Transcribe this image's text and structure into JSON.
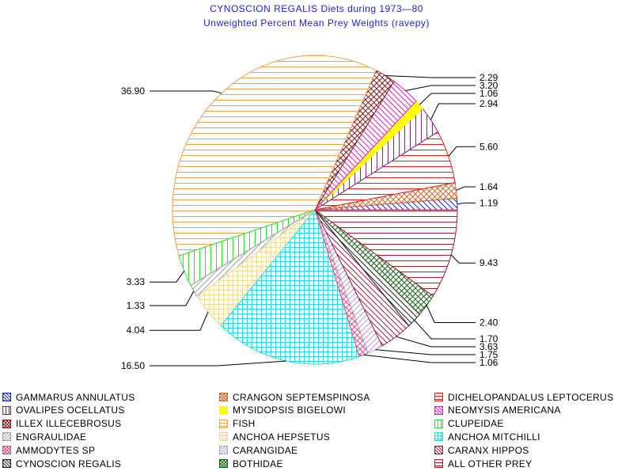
{
  "chart_data": {
    "type": "pie",
    "title": "CYNOSCION REGALIS Diets during 1973—80",
    "subtitle": "Unweighted Percent Mean Prey Weights (ravepy)",
    "slices": [
      {
        "name": "GAMMARUS ANNULATUS",
        "value": 1.19,
        "label": "1.19",
        "color": "#1f1fd1",
        "pattern": "diag-back"
      },
      {
        "name": "CRANGON SEPTEMSPINOSA",
        "value": 1.64,
        "label": "1.64",
        "color": "#cc6a2c",
        "pattern": "cross-diag"
      },
      {
        "name": "DICHELOPANDALUS LEPTOCERUS",
        "value": 5.6,
        "label": "5.60",
        "color": "#e02020",
        "pattern": "horiz"
      },
      {
        "name": "OVALIPES OCELLATUS",
        "value": 2.94,
        "label": "2.94",
        "color": "#7a2b86",
        "pattern": "vert"
      },
      {
        "name": "MYSIDOPSIS BIGELOWI",
        "value": 1.06,
        "label": "1.06",
        "color": "#ffff00",
        "pattern": "solid"
      },
      {
        "name": "NEOMYSIS AMERICANA",
        "value": 3.2,
        "label": "3.20",
        "color": "#e020c0",
        "pattern": "diag-back"
      },
      {
        "name": "ILLEX ILLECEBROSUS",
        "value": 2.29,
        "label": "2.29",
        "color": "#7a2020",
        "pattern": "cross-diag"
      },
      {
        "name": "FISH",
        "value": 36.9,
        "label": "36.90",
        "color": "#f0a050",
        "pattern": "horiz"
      },
      {
        "name": "CLUPEIDAE",
        "value": 3.33,
        "label": "3.33",
        "color": "#30e030",
        "pattern": "vert"
      },
      {
        "name": "ENGRAULIDAE",
        "value": 1.33,
        "label": "1.33",
        "color": "#a0a0a0",
        "pattern": "diag-fwd"
      },
      {
        "name": "ANCHOA HEPSETUS",
        "value": 4.04,
        "label": "4.04",
        "color": "#f0d8a0",
        "pattern": "grid"
      },
      {
        "name": "ANCHOA MITCHILLI",
        "value": 16.5,
        "label": "16.50",
        "color": "#30d8d8",
        "pattern": "grid"
      },
      {
        "name": "AMMODYTES SP",
        "value": 1.06,
        "label": "1.06",
        "color": "#e05080",
        "pattern": "cross-diag"
      },
      {
        "name": "CARANGIDAE",
        "value": 1.75,
        "label": "1.75",
        "color": "#b0a0d8",
        "pattern": "diag-fwd"
      },
      {
        "name": "CARANX HIPPOS",
        "value": 3.63,
        "label": "3.63",
        "color": "#a02040",
        "pattern": "diag-back"
      },
      {
        "name": "CYNOSCION REGALIS",
        "value": 1.7,
        "label": "1.70",
        "color": "#202020",
        "pattern": "diag-back"
      },
      {
        "name": "BOTHIDAE",
        "value": 2.4,
        "label": "2.40",
        "color": "#206020",
        "pattern": "cross-diag"
      },
      {
        "name": "ALL OTHER PREY",
        "value": 9.43,
        "label": "9.43",
        "color": "#a02030",
        "pattern": "horiz"
      }
    ],
    "legend": {
      "placement": "bottom",
      "columns": 3,
      "order": [
        "GAMMARUS ANNULATUS",
        "CRANGON SEPTEMSPINOSA",
        "DICHELOPANDALUS LEPTOCERUS",
        "OVALIPES OCELLATUS",
        "MYSIDOPSIS BIGELOWI",
        "NEOMYSIS AMERICANA",
        "ILLEX ILLECEBROSUS",
        "FISH",
        "CLUPEIDAE",
        "ENGRAULIDAE",
        "ANCHOA HEPSETUS",
        "ANCHOA MITCHILLI",
        "AMMODYTES SP",
        "CARANGIDAE",
        "CARANX HIPPOS",
        "CYNOSCION REGALIS",
        "BOTHIDAE",
        "ALL OTHER PREY"
      ]
    },
    "title_color": "#1f1fd1"
  }
}
